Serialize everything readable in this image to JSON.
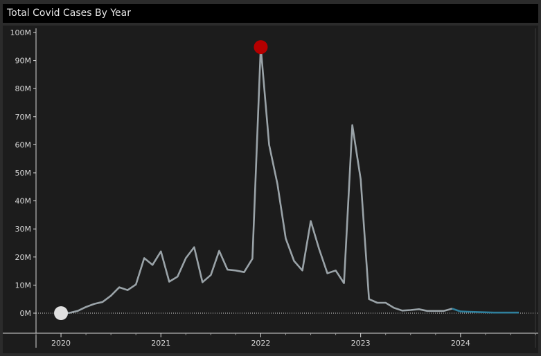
{
  "header": {
    "title": "Total Covid Cases By Year"
  },
  "chart_data": {
    "type": "line",
    "title": "Total Covid Cases By Year",
    "xlabel": "",
    "ylabel": "",
    "x_ticks": [
      "2020",
      "2021",
      "2022",
      "2023",
      "2024"
    ],
    "y_ticks": [
      "0M",
      "10M",
      "20M",
      "30M",
      "40M",
      "50M",
      "60M",
      "70M",
      "80M",
      "90M",
      "100M"
    ],
    "ylim": [
      0,
      100
    ],
    "xlim": [
      "2019-10",
      "2024-10"
    ],
    "grid": false,
    "zero_line": "dotted",
    "colors": {
      "line": "#9aa3a8",
      "forecast": "#2f7f9c",
      "max_marker": "#b50000",
      "min_marker": "#e0e0e0"
    },
    "series": [
      {
        "values_unit": "millions of cases",
        "points": [
          [
            "2020-01",
            0.0
          ],
          [
            "2020-02",
            0.1
          ],
          [
            "2020-03",
            0.8
          ],
          [
            "2020-04",
            2.2
          ],
          [
            "2020-05",
            3.3
          ],
          [
            "2020-06",
            4.0
          ],
          [
            "2020-07",
            6.2
          ],
          [
            "2020-08",
            9.2
          ],
          [
            "2020-09",
            8.2
          ],
          [
            "2020-10",
            10.2
          ],
          [
            "2020-11",
            19.6
          ],
          [
            "2020-12",
            17.2
          ],
          [
            "2021-01",
            22.0
          ],
          [
            "2021-02",
            11.2
          ],
          [
            "2021-03",
            13.0
          ],
          [
            "2021-04",
            19.6
          ],
          [
            "2021-05",
            23.5
          ],
          [
            "2021-06",
            11.0
          ],
          [
            "2021-07",
            13.6
          ],
          [
            "2021-08",
            22.2
          ],
          [
            "2021-09",
            15.5
          ],
          [
            "2021-10",
            15.2
          ],
          [
            "2021-11",
            14.6
          ],
          [
            "2021-12",
            19.4
          ],
          [
            "2022-01",
            94.8
          ],
          [
            "2022-02",
            60.0
          ],
          [
            "2022-03",
            46.0
          ],
          [
            "2022-04",
            26.6
          ],
          [
            "2022-05",
            18.6
          ],
          [
            "2022-06",
            15.2
          ],
          [
            "2022-07",
            32.8
          ],
          [
            "2022-08",
            22.9
          ],
          [
            "2022-09",
            14.2
          ],
          [
            "2022-10",
            15.2
          ],
          [
            "2022-11",
            10.7
          ],
          [
            "2022-12",
            67.0
          ],
          [
            "2023-01",
            47.7
          ],
          [
            "2023-02",
            5.0
          ],
          [
            "2023-03",
            3.7
          ],
          [
            "2023-04",
            3.7
          ],
          [
            "2023-05",
            1.9
          ],
          [
            "2023-06",
            0.9
          ],
          [
            "2023-07",
            1.1
          ],
          [
            "2023-08",
            1.4
          ],
          [
            "2023-09",
            0.8
          ],
          [
            "2023-10",
            0.8
          ],
          [
            "2023-11",
            0.8
          ],
          [
            "2023-12",
            1.6
          ]
        ],
        "forecast_points": [
          [
            "2023-12",
            1.6
          ],
          [
            "2024-01",
            0.6
          ],
          [
            "2024-02",
            0.5
          ],
          [
            "2024-03",
            0.4
          ],
          [
            "2024-04",
            0.3
          ],
          [
            "2024-05",
            0.2
          ],
          [
            "2024-06",
            0.2
          ],
          [
            "2024-07",
            0.2
          ],
          [
            "2024-08",
            0.2
          ]
        ]
      }
    ],
    "markers": [
      {
        "kind": "max",
        "x": "2022-01",
        "y": 94.8
      },
      {
        "kind": "min",
        "x": "2020-01",
        "y": 0.0
      }
    ]
  }
}
